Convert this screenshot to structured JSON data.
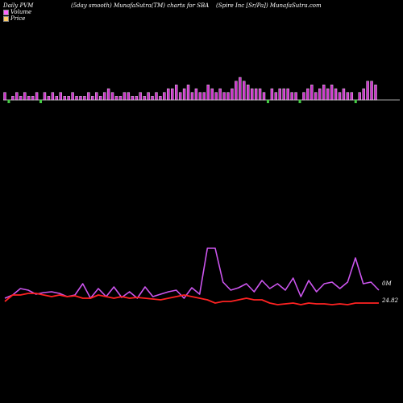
{
  "header": {
    "left": "Daily PVM",
    "middle": "(5day smooth) MunafaSutra(TM) charts for SBA",
    "right": "(Spire  Inc [Sr/Pa]) MunafaSutra.com"
  },
  "legend": [
    {
      "label": "Volume",
      "color": "#ff66ff"
    },
    {
      "label": "Price",
      "color": "#ffcc66"
    }
  ],
  "labels": {
    "volume_value": "0M",
    "price_value": "24.82"
  },
  "colors": {
    "background": "#000000",
    "volume_bar": "#cc33cc",
    "volume_bar_highlight": "#ffffff",
    "down_bar": "#44cc44",
    "volume_line": "#cc55ee",
    "price_line": "#ff2222",
    "baseline": "#aaaaaa"
  },
  "chart_data": {
    "type": "bar",
    "title": "",
    "series": [
      {
        "values": [
          2,
          2,
          1,
          2,
          1,
          2,
          1,
          1,
          2,
          1,
          2,
          1,
          2,
          1,
          2,
          1,
          1,
          2,
          1,
          1,
          1,
          2,
          1,
          2,
          1,
          2,
          3,
          2,
          1,
          1,
          2,
          2,
          1,
          1,
          2,
          1,
          2,
          1,
          2,
          1,
          2,
          3,
          3,
          4,
          2,
          3,
          4,
          2,
          3,
          2,
          2,
          4,
          3,
          2,
          3,
          2,
          2,
          3,
          5,
          6,
          5,
          4,
          3,
          3,
          3,
          2,
          2,
          3,
          2,
          3,
          3,
          3,
          2,
          2,
          3,
          2,
          3,
          4,
          2,
          3,
          4,
          3,
          4,
          3,
          2,
          3,
          2,
          2,
          4,
          2,
          3,
          5,
          5,
          4
        ],
        "direction": [
          1,
          -1,
          1,
          1,
          1,
          1,
          1,
          1,
          1,
          -1,
          1,
          1,
          1,
          1,
          1,
          1,
          1,
          1,
          1,
          1,
          1,
          1,
          1,
          1,
          1,
          1,
          1,
          1,
          1,
          1,
          1,
          1,
          1,
          1,
          1,
          1,
          1,
          1,
          1,
          1,
          1,
          1,
          1,
          1,
          1,
          1,
          1,
          1,
          1,
          1,
          1,
          1,
          1,
          1,
          1,
          1,
          1,
          1,
          1,
          1,
          1,
          1,
          1,
          1,
          1,
          1,
          -1,
          1,
          1,
          1,
          1,
          1,
          1,
          1,
          -1,
          1,
          1,
          1,
          1,
          1,
          1,
          1,
          1,
          1,
          1,
          1,
          1,
          1,
          -1,
          1,
          1,
          1,
          1,
          1
        ]
      }
    ],
    "volume_line": [
      370,
      366,
      358,
      360,
      365,
      363,
      362,
      364,
      368,
      366,
      352,
      370,
      358,
      368,
      356,
      369,
      362,
      370,
      356,
      368,
      365,
      362,
      360,
      370,
      357,
      365,
      308,
      308,
      350,
      360,
      357,
      352,
      362,
      348,
      358,
      352,
      360,
      345,
      368,
      348,
      362,
      352,
      350,
      358,
      350,
      320,
      352,
      350,
      360
    ],
    "price_line": [
      374,
      366,
      366,
      364,
      364,
      366,
      368,
      366,
      368,
      367,
      370,
      370,
      366,
      368,
      370,
      368,
      370,
      369,
      370,
      371,
      372,
      370,
      368,
      366,
      368,
      370,
      372,
      376,
      374,
      374,
      372,
      370,
      372,
      372,
      376,
      378,
      377,
      376,
      378,
      376,
      377,
      377,
      378,
      377,
      378,
      376,
      376,
      376,
      376
    ]
  }
}
